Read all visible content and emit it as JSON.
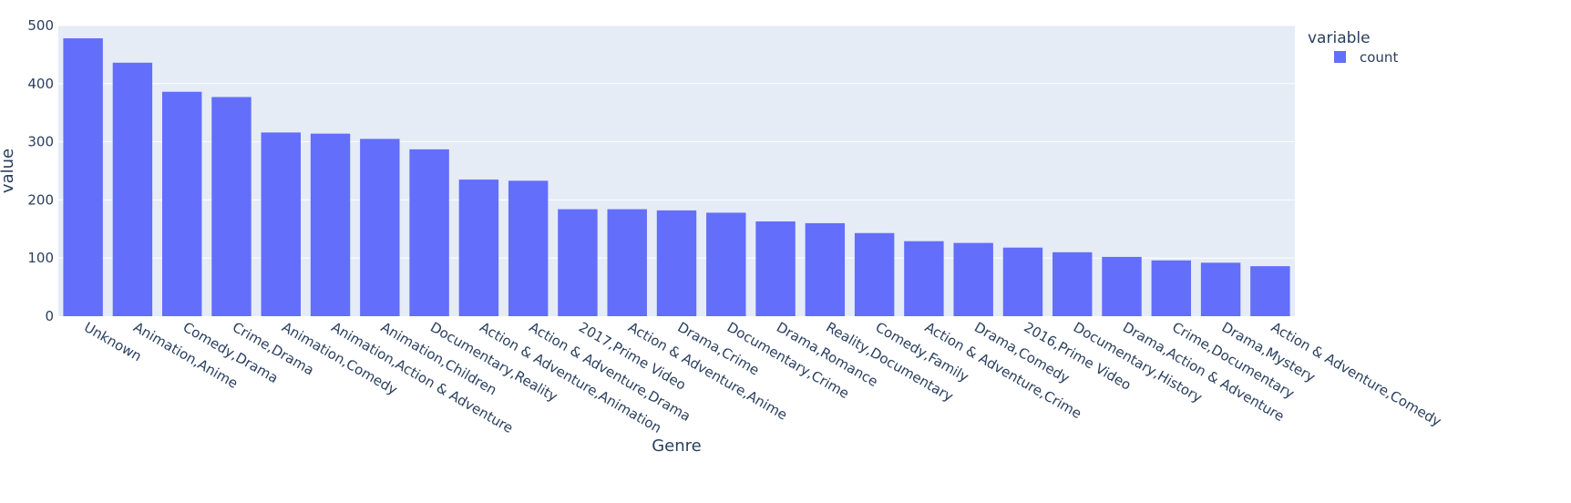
{
  "chart_data": {
    "type": "bar",
    "categories": [
      "Unknown",
      "Animation,Anime",
      "Comedy,Drama",
      "Crime,Drama",
      "Animation,Comedy",
      "Animation,Action & Adventure",
      "Animation,Children",
      "Documentary,Reality",
      "Action & Adventure,Animation",
      "Action & Adventure,Drama",
      "2017,Prime Video",
      "Action & Adventure,Anime",
      "Drama,Crime",
      "Documentary,Crime",
      "Drama,Romance",
      "Reality,Documentary",
      "Comedy,Family",
      "Action & Adventure,Crime",
      "Drama,Comedy",
      "2016,Prime Video",
      "Documentary,History",
      "Drama,Action & Adventure",
      "Crime,Documentary",
      "Drama,Mystery",
      "Action & Adventure,Comedy"
    ],
    "series": [
      {
        "name": "count",
        "color": "#636efa",
        "values": [
          478,
          436,
          386,
          377,
          316,
          314,
          305,
          287,
          235,
          233,
          184,
          184,
          182,
          178,
          163,
          160,
          143,
          129,
          126,
          118,
          110,
          102,
          96,
          92,
          86
        ]
      }
    ],
    "title": "",
    "xlabel": "Genre",
    "ylabel": "value",
    "ylim": [
      0,
      500
    ],
    "yticks": [
      "0",
      "100",
      "200",
      "300",
      "400",
      "500"
    ],
    "grid": true,
    "legend": {
      "title": "variable",
      "placement": "top-right"
    },
    "plot_background": "#e5ecf6"
  }
}
